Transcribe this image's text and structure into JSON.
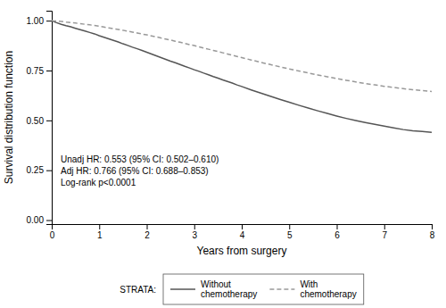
{
  "chart_data": {
    "type": "line",
    "title": "",
    "x_label": "Years from surgery",
    "y_label": "Survival distribution function",
    "x": [
      0,
      0.05,
      0.1,
      0.2,
      0.3,
      0.4,
      0.5,
      0.6,
      0.7,
      0.8,
      0.9,
      1.0,
      1.1,
      1.2,
      1.3,
      1.4,
      1.5,
      1.6,
      1.7,
      1.8,
      1.9,
      2.0,
      2.1,
      2.2,
      2.3,
      2.4,
      2.5,
      2.6,
      2.7,
      2.8,
      2.9,
      3.0,
      3.1,
      3.2,
      3.3,
      3.4,
      3.5,
      3.6,
      3.7,
      3.8,
      3.9,
      4.0,
      4.2,
      4.4,
      4.6,
      4.8,
      5.0,
      5.2,
      5.4,
      5.6,
      5.8,
      6.0,
      6.2,
      6.4,
      6.6,
      6.8,
      7.0,
      7.2,
      7.4,
      7.6,
      7.8,
      8.0
    ],
    "series": [
      {
        "name": "Without\nchemotherapy",
        "color": "#555555",
        "line_style": "solid",
        "values": [
          1.0,
          0.995,
          0.99,
          0.982,
          0.975,
          0.969,
          0.962,
          0.955,
          0.948,
          0.941,
          0.934,
          0.925,
          0.917,
          0.909,
          0.901,
          0.893,
          0.884,
          0.876,
          0.867,
          0.859,
          0.851,
          0.842,
          0.833,
          0.824,
          0.815,
          0.806,
          0.797,
          0.789,
          0.78,
          0.771,
          0.763,
          0.754,
          0.746,
          0.737,
          0.729,
          0.72,
          0.712,
          0.703,
          0.695,
          0.687,
          0.678,
          0.67,
          0.653,
          0.637,
          0.621,
          0.606,
          0.591,
          0.576,
          0.562,
          0.548,
          0.535,
          0.522,
          0.51,
          0.499,
          0.489,
          0.48,
          0.471,
          0.462,
          0.454,
          0.448,
          0.444,
          0.44
        ]
      },
      {
        "name": "With\nchemotherapy",
        "color": "#999999",
        "line_style": "dashed",
        "values": [
          1.0,
          0.999,
          0.998,
          0.996,
          0.993,
          0.991,
          0.988,
          0.985,
          0.982,
          0.979,
          0.976,
          0.972,
          0.968,
          0.964,
          0.96,
          0.956,
          0.952,
          0.947,
          0.943,
          0.938,
          0.933,
          0.929,
          0.924,
          0.919,
          0.913,
          0.908,
          0.903,
          0.897,
          0.892,
          0.886,
          0.88,
          0.875,
          0.869,
          0.863,
          0.857,
          0.851,
          0.845,
          0.839,
          0.833,
          0.827,
          0.821,
          0.815,
          0.803,
          0.791,
          0.78,
          0.769,
          0.758,
          0.748,
          0.738,
          0.728,
          0.719,
          0.71,
          0.701,
          0.693,
          0.685,
          0.678,
          0.671,
          0.665,
          0.659,
          0.654,
          0.65,
          0.645
        ]
      }
    ],
    "xlim": [
      0,
      8
    ],
    "ylim": [
      -0.02,
      1.05
    ],
    "xticks": [
      0,
      1,
      2,
      3,
      4,
      5,
      6,
      7,
      8
    ],
    "yticks": [
      {
        "value": 0.0,
        "label": "0.00"
      },
      {
        "value": 0.25,
        "label": "0.25"
      },
      {
        "value": 0.5,
        "label": "0.50"
      },
      {
        "value": 0.75,
        "label": "0.75"
      },
      {
        "value": 1.0,
        "label": "1.00"
      }
    ],
    "annotations": [
      "Unadj HR: 0.553 (95% CI: 0.502–0.610)",
      "Adj HR: 0.766 (95% CI: 0.688–0.853)",
      "Log-rank p<0.0001"
    ],
    "legend": "bottom",
    "legend_title": "STRATA:",
    "grid": false
  }
}
